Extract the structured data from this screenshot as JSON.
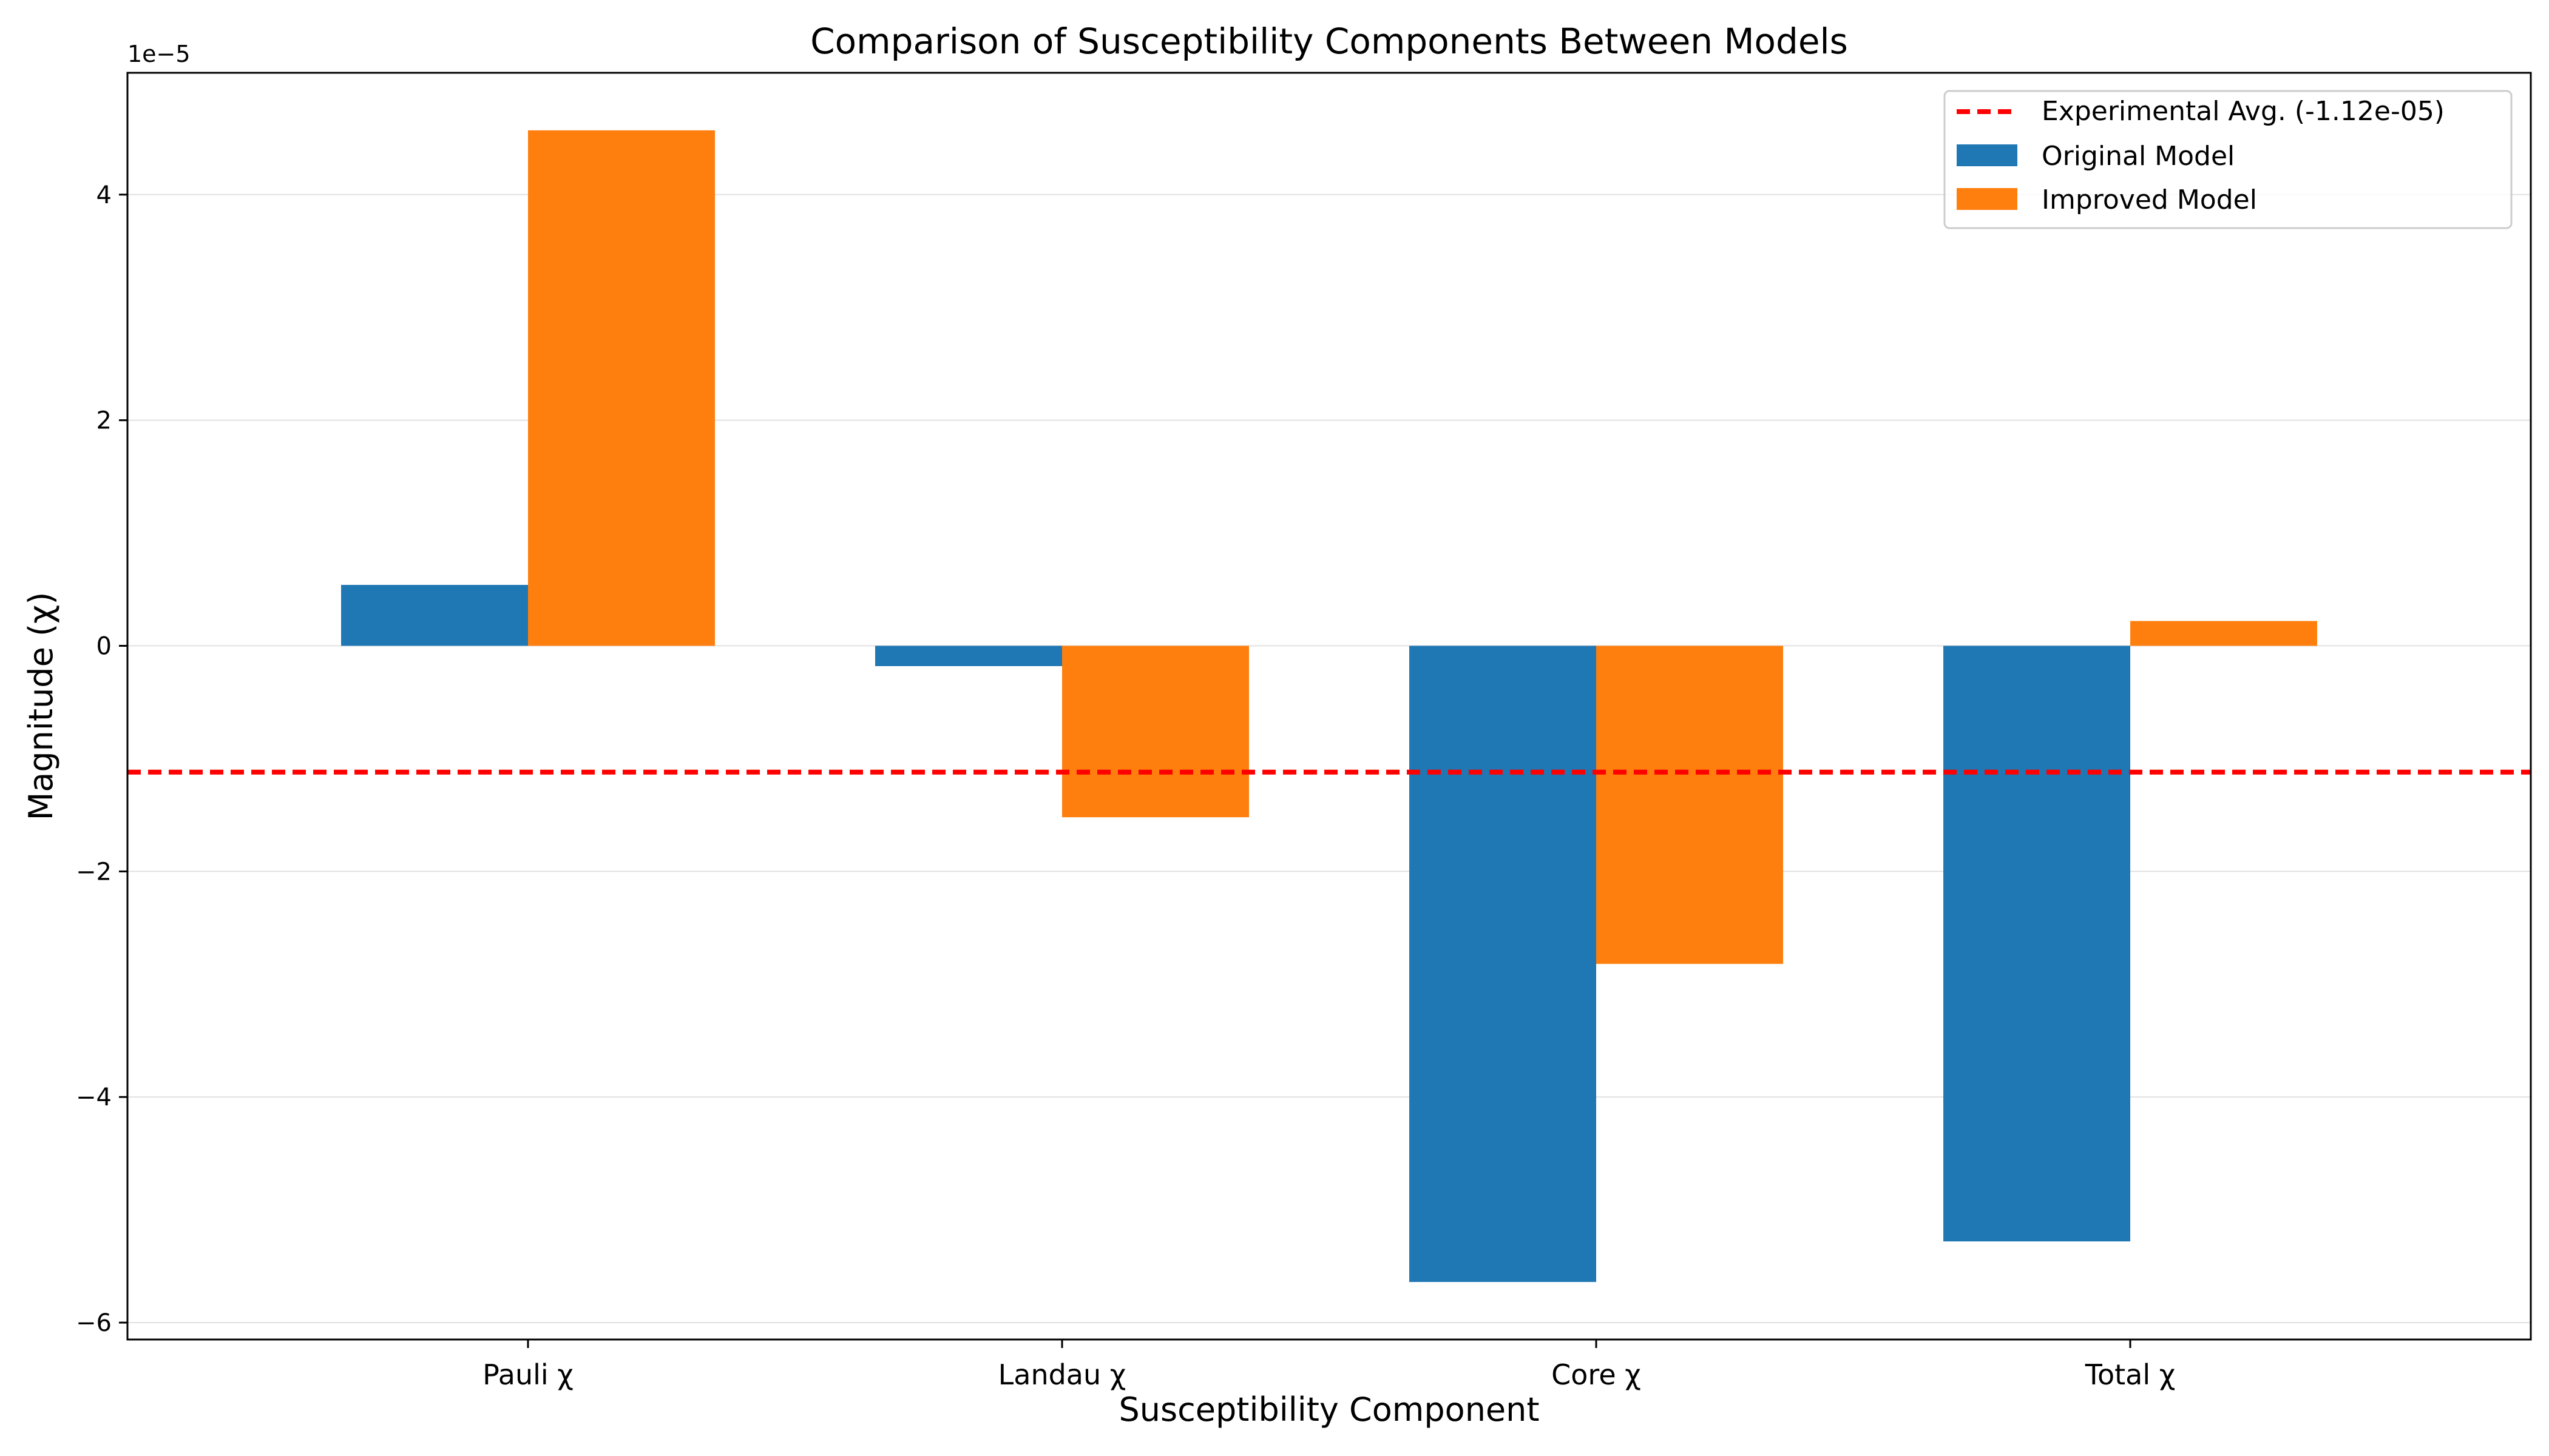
{
  "chart_data": {
    "type": "bar",
    "title": "Comparison of Susceptibility Components Between Models",
    "xlabel": "Susceptibility Component",
    "ylabel": "Magnitude (χ)",
    "offset_label": "1e−5",
    "categories": [
      "Pauli χ",
      "Landau χ",
      "Core χ",
      "Total χ"
    ],
    "series": [
      {
        "name": "Original Model",
        "color": "#1f77b4",
        "values": [
          5.4e-06,
          -1.8e-06,
          -5.64e-05,
          -5.28e-05
        ]
      },
      {
        "name": "Improved Model",
        "color": "#ff7f0e",
        "values": [
          4.57e-05,
          -1.52e-05,
          -2.82e-05,
          2.2e-06
        ]
      }
    ],
    "reference_line": {
      "name": "Experimental Avg. (-1.12e-05)",
      "value": -1.12e-05,
      "color": "#ff0000",
      "style": "dashed"
    },
    "yticks": [
      -6,
      -4,
      -2,
      0,
      2,
      4
    ],
    "ylim": [
      -6.15e-05,
      5.08e-05
    ],
    "grid": "horizontal",
    "legend_position": "top-right"
  }
}
